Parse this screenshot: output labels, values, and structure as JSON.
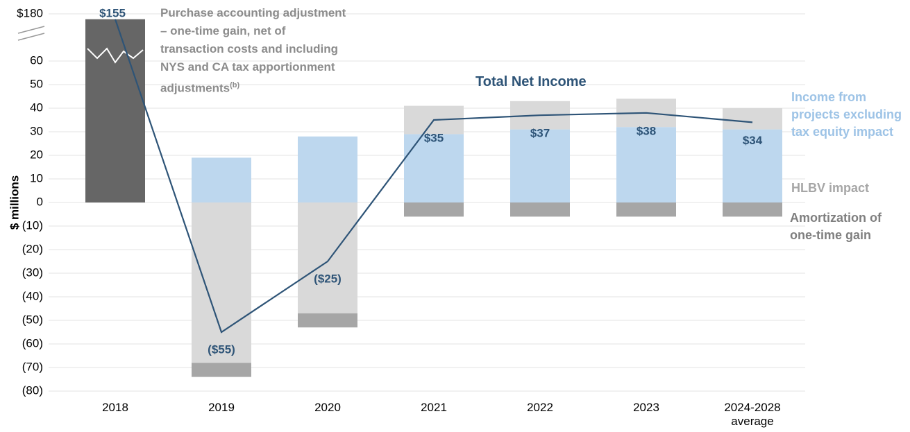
{
  "chart_data": {
    "type": "bar",
    "stacked": true,
    "y_label": "$ millions",
    "categories": [
      "2018",
      "2019",
      "2020",
      "2021",
      "2022",
      "2023",
      "2024-2028 average"
    ],
    "series": [
      {
        "name": "Purchase accounting adjustment – one-time gain, net of transaction costs and including NYS and CA tax apportionment adjustments",
        "name_note": "(b)",
        "color": "#666666",
        "text_color": "#8c8c8c",
        "values": [
          155,
          null,
          null,
          null,
          null,
          null,
          null
        ]
      },
      {
        "name": "Income from projects excluding tax equity impact",
        "color": "#bdd7ee",
        "text_color": "#9dc3e6",
        "values": [
          null,
          19,
          28,
          29,
          31,
          32,
          31
        ]
      },
      {
        "name": "HLBV impact",
        "color": "#d9d9d9",
        "text_color": "#a6a6a6",
        "values": [
          null,
          -68,
          -47,
          12,
          12,
          12,
          9
        ]
      },
      {
        "name": "Amortization of one-time gain",
        "color": "#a6a6a6",
        "text_color": "#7f7f7f",
        "values": [
          null,
          -6,
          -6,
          -6,
          -6,
          -6,
          -6
        ]
      }
    ],
    "line": {
      "name": "Total Net Income",
      "color": "#2e5477",
      "values": [
        155,
        -55,
        -25,
        35,
        37,
        38,
        34
      ],
      "value_labels": [
        "$155",
        "($55)",
        "($25)",
        "$35",
        "$37",
        "$38",
        "$34"
      ]
    },
    "ylim": [
      -80,
      180
    ],
    "axis_break": [
      70,
      180
    ],
    "yticks": [
      {
        "value": 180,
        "label": "$180"
      },
      60,
      50,
      40,
      30,
      20,
      10,
      0,
      {
        "value": -10,
        "label": "(10)"
      },
      {
        "value": -20,
        "label": "(20)"
      },
      {
        "value": -30,
        "label": "(30)"
      },
      {
        "value": -40,
        "label": "(40)"
      },
      {
        "value": -50,
        "label": "(50)"
      },
      {
        "value": -60,
        "label": "(60)"
      },
      {
        "value": -70,
        "label": "(70)"
      },
      {
        "value": -80,
        "label": "(80)"
      }
    ],
    "grid": true
  }
}
